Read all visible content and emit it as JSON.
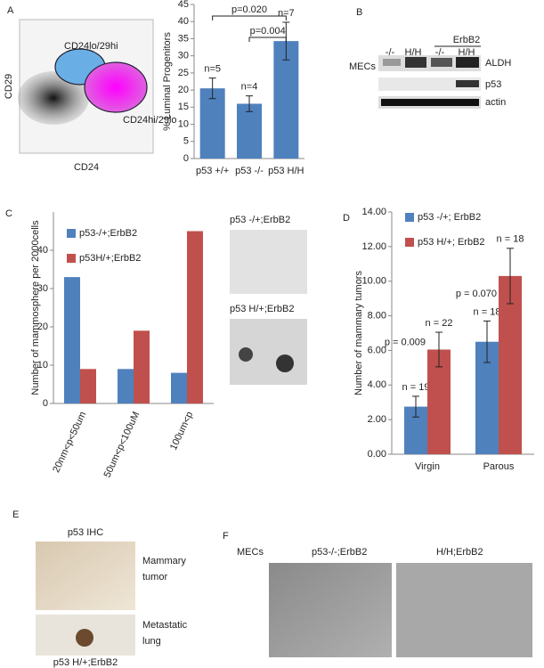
{
  "panel_labels": [
    "A",
    "B",
    "C",
    "D",
    "E",
    "F"
  ],
  "flow": {
    "x_label": "CD24",
    "y_label": "CD29",
    "gates": [
      "CD24lo/29hi",
      "CD24hi/29lo"
    ]
  },
  "chart_data": [
    {
      "type": "bar",
      "y_label": "% Luminal Progenitors",
      "categories": [
        "p53 +/+",
        "p53 -/-",
        "p53 H/H"
      ],
      "values": [
        20.5,
        16,
        34.3
      ],
      "errors": [
        3,
        2.3,
        5.5
      ],
      "color": "#4f81bd",
      "annotations": [
        "n=5",
        "n=4",
        "n=7"
      ],
      "p_values": [
        "p=0.020",
        "p=0.004"
      ],
      "ylim": [
        0,
        45
      ],
      "yticks": [
        0,
        5,
        10,
        15,
        20,
        25,
        30,
        35,
        40,
        45
      ]
    },
    {
      "type": "bar",
      "y_label": "Number of mammosphere per 2000cells",
      "categories": [
        "20nm<p<50um",
        "50um<p<100uM",
        "100um<p"
      ],
      "series": [
        {
          "name": "p53-/+;ErbB2",
          "color": "#4f81bd",
          "values": [
            33,
            9,
            8
          ]
        },
        {
          "name": "p53H/+;ErbB2",
          "color": "#c0504d",
          "values": [
            9,
            19,
            45
          ]
        }
      ],
      "ylim": [
        0,
        50
      ],
      "yticks": [
        0,
        10,
        20,
        30,
        40
      ]
    },
    {
      "type": "bar",
      "y_label": "Number of mammary tumors",
      "categories": [
        "Virgin",
        "Parous"
      ],
      "series": [
        {
          "name": "p53 -/+; ErbB2",
          "color": "#4f81bd",
          "values": [
            2.75,
            6.5
          ],
          "errors": [
            0.6,
            1.2
          ],
          "annotations": [
            "n = 19",
            "n = 18"
          ]
        },
        {
          "name": "p53 H/+; ErbB2",
          "color": "#c0504d",
          "values": [
            6.05,
            10.3
          ],
          "errors": [
            1.0,
            1.6
          ],
          "annotations": [
            "n = 22",
            "n = 18"
          ]
        }
      ],
      "p_values": [
        "p = 0.009",
        "p = 0.070"
      ],
      "ylim": [
        0,
        14
      ],
      "yticks": [
        {
          "value": 0,
          "label": "0.00"
        },
        {
          "value": 2,
          "label": "2.00"
        },
        {
          "value": 4,
          "label": "4.00"
        },
        {
          "value": 6,
          "label": "6.00"
        },
        {
          "value": 8,
          "label": "8.00"
        },
        {
          "value": 10,
          "label": "10.00"
        },
        {
          "value": 12,
          "label": "12.00"
        },
        {
          "value": 14,
          "label": "14.00"
        }
      ]
    }
  ],
  "blot": {
    "group": "ErbB2",
    "lanes": [
      "-/-",
      "H/H",
      "-/-",
      "H/H"
    ],
    "sample": "MECs",
    "bands": [
      "ALDH",
      "p53",
      "actin"
    ]
  },
  "sphere_images": [
    "p53 -/+;ErbB2",
    "p53 H/+;ErbB2"
  ],
  "ihc": {
    "title": "p53 IHC",
    "images": [
      [
        "Mammary",
        "tumor"
      ],
      [
        "Metastatic",
        "lung"
      ]
    ],
    "genotype": "p53 H/+;ErbB2"
  },
  "culture": {
    "sample": "MECs",
    "images": [
      "p53-/-;ErbB2",
      "H/H;ErbB2"
    ]
  }
}
